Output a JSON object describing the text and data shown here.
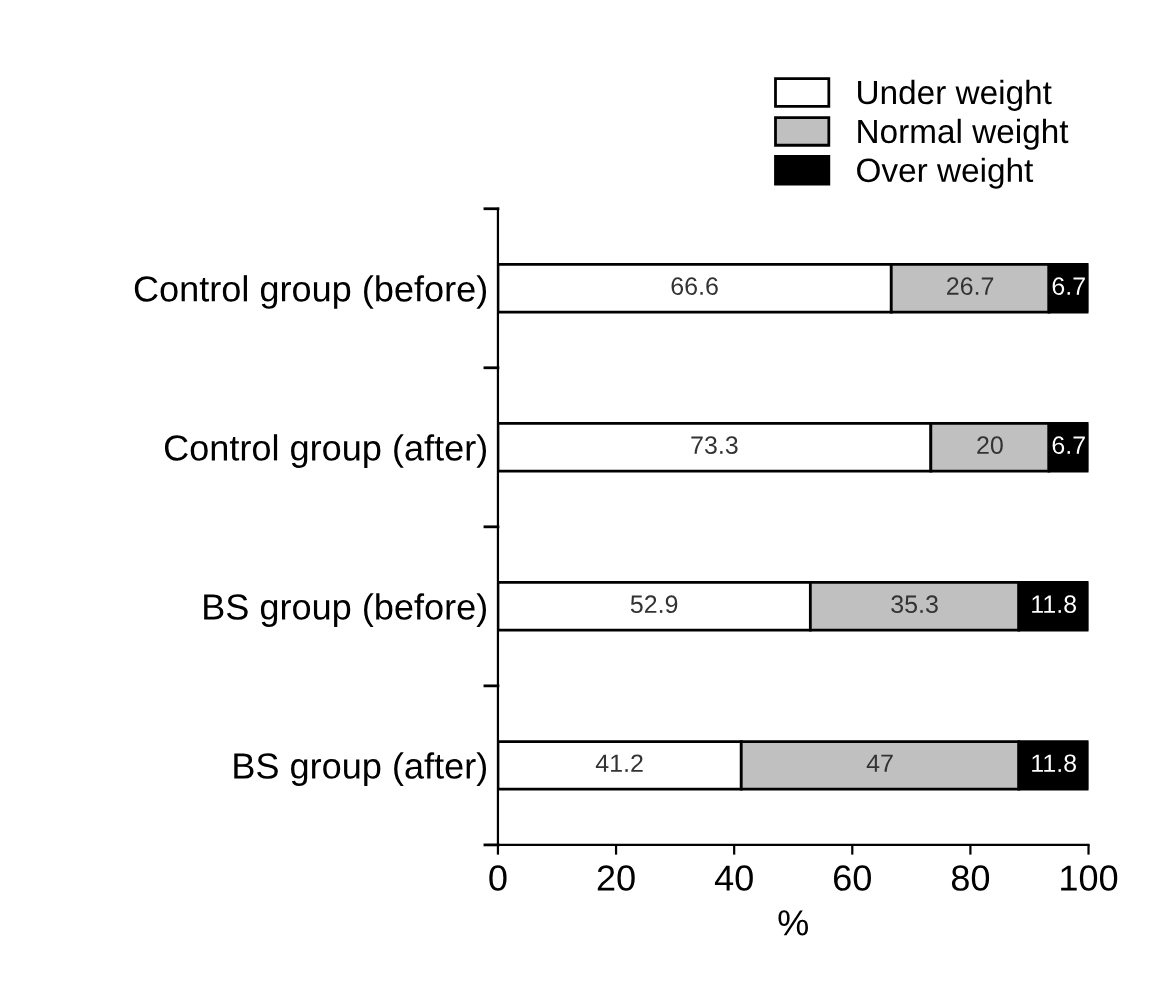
{
  "chart_data": {
    "type": "bar",
    "orientation": "horizontal",
    "stacked": true,
    "xlabel": "%",
    "categories": [
      "Control group (before)",
      "Control group (after)",
      "BS group (before)",
      "BS group (after)"
    ],
    "series": [
      {
        "name": "Under weight",
        "color": "#ffffff",
        "values": [
          66.6,
          73.3,
          52.9,
          41.2
        ]
      },
      {
        "name": "Normal weight",
        "color": "#c0c0c0",
        "values": [
          26.7,
          20,
          35.3,
          47
        ]
      },
      {
        "name": "Over weight",
        "color": "#000000",
        "values": [
          6.7,
          6.7,
          11.8,
          11.8
        ]
      }
    ],
    "xlim": [
      0,
      100
    ],
    "xticks": [
      0,
      20,
      40,
      60,
      80,
      100
    ],
    "data_labels": true,
    "legend": "top right",
    "grid": false
  }
}
